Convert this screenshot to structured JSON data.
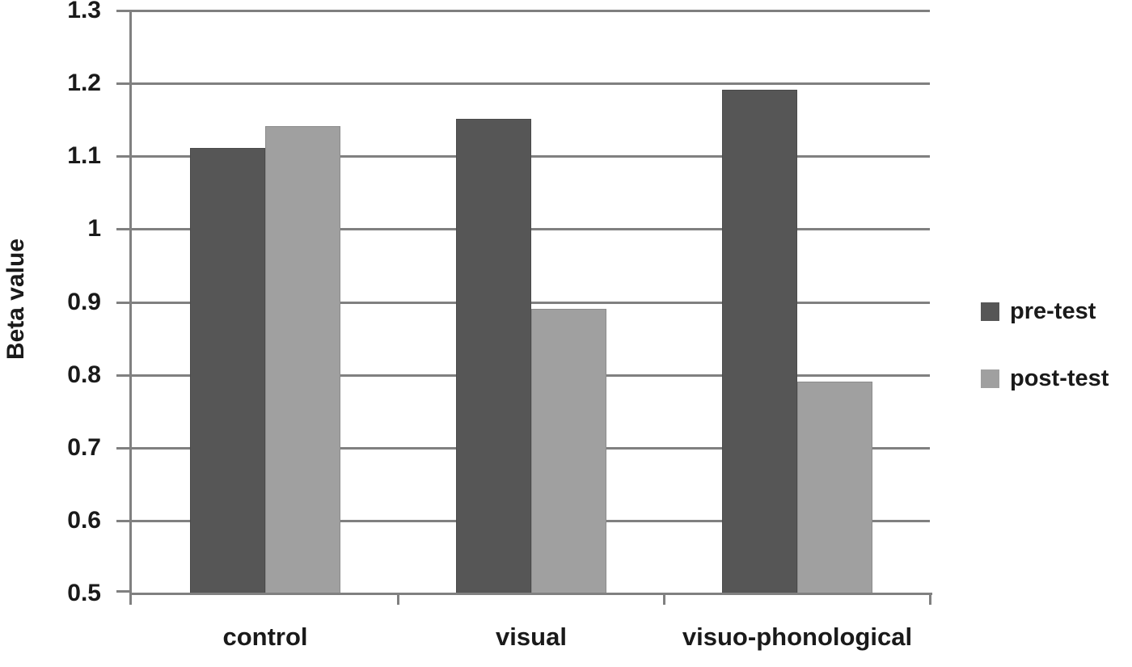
{
  "chart_data": {
    "type": "bar",
    "title": "",
    "xlabel": "",
    "ylabel": "Beta value",
    "categories": [
      "control",
      "visual",
      "visuo-phonological"
    ],
    "series": [
      {
        "name": "pre-test",
        "color": "#565656",
        "border_color": "#4a4a4a",
        "values": [
          1.11,
          1.15,
          1.19
        ]
      },
      {
        "name": "post-test",
        "color": "#A0A0A0",
        "border_color": "#8c8c8c",
        "values": [
          1.14,
          0.89,
          0.79
        ]
      }
    ],
    "ylim": [
      0.5,
      1.3
    ],
    "ytick_step": 0.1,
    "ytick_labels": [
      "0.5",
      "0.6",
      "0.7",
      "0.8",
      "0.9",
      "1",
      "1.1",
      "1.2",
      "1.3"
    ],
    "grid": true,
    "legend_position": "right"
  },
  "colors": {
    "axis": "#808080",
    "gridline": "#808080",
    "text": "#1a1a1a",
    "background": "#ffffff"
  }
}
